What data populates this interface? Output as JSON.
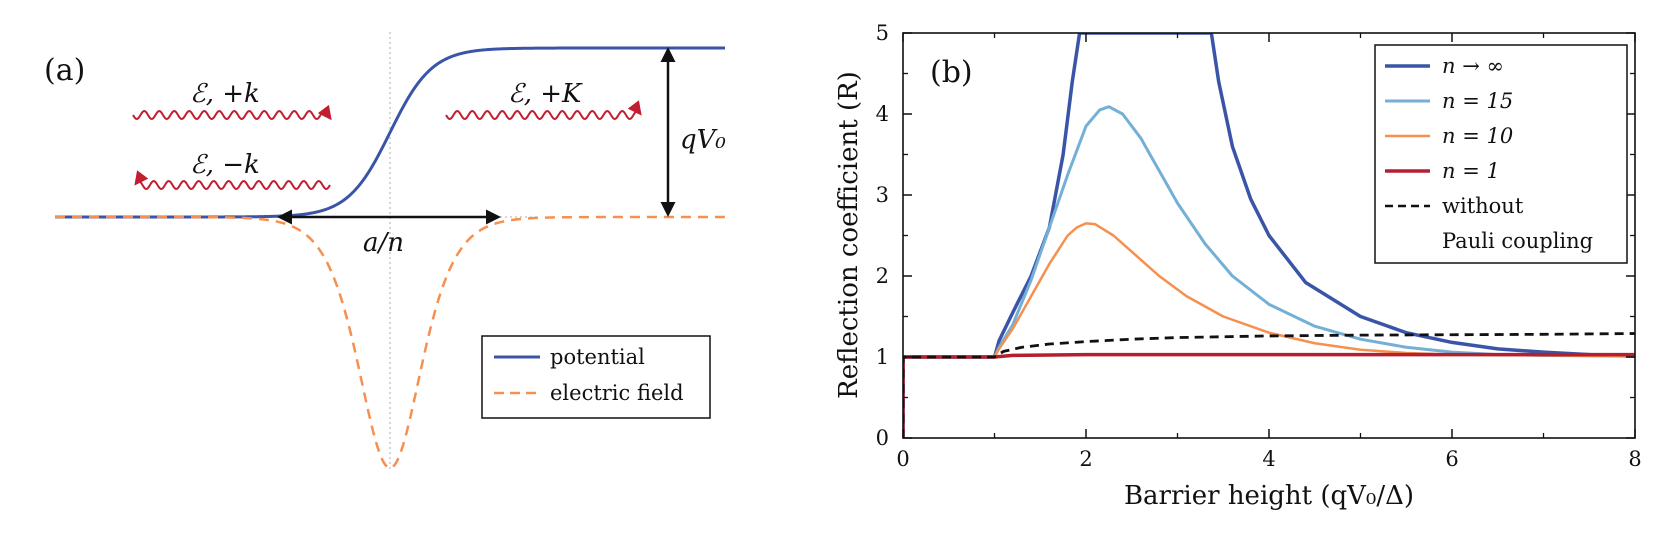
{
  "chart_data": [
    {
      "type": "line",
      "panel": "(a)",
      "x_range": [
        -1,
        1
      ],
      "y_range": [
        -1,
        1
      ],
      "series": [
        {
          "name": "potential",
          "style": "solid",
          "color": "#3a55a8",
          "description_formula": "y = 0.5 + 0.5*tanh((x - 0.02) / 0.07) in normalized units"
        },
        {
          "name": "electric field",
          "style": "dashed",
          "color": "#f5904f",
          "description_formula": "y = -sech^2((x - 0.02) / 0.07) in normalized units"
        }
      ],
      "annotations": {
        "panel_label": "(a)",
        "wave_incident": "ℰ, +k",
        "wave_reflected": "ℰ, −k",
        "wave_transmitted": "ℰ, +K",
        "width_label": "a/n",
        "height_label": "qV₀"
      },
      "legend": {
        "placement": "bottom-right",
        "entries": [
          "potential",
          "electric field"
        ]
      }
    },
    {
      "type": "line",
      "panel": "(b)",
      "title": "",
      "xlabel": "Barrier height (qV₀/Δ)",
      "ylabel": "Reflection coefficient (R)",
      "xlim": [
        0,
        8
      ],
      "ylim": [
        0,
        5
      ],
      "xticks": [
        0,
        2,
        4,
        6,
        8
      ],
      "yticks": [
        0,
        1,
        2,
        3,
        4,
        5
      ],
      "x_minor_ticks": [
        1,
        3,
        5,
        7
      ],
      "panel_label": "(b)",
      "legend": {
        "placement": "top-right"
      },
      "series": [
        {
          "name": "n → ∞",
          "color": "#3a55a8",
          "style": "solid",
          "points": [
            [
              0,
              0
            ],
            [
              0.001,
              1.0
            ],
            [
              0.5,
              1.0
            ],
            [
              1.0,
              1.0
            ],
            [
              1.05,
              1.2
            ],
            [
              1.2,
              1.55
            ],
            [
              1.4,
              2.0
            ],
            [
              1.6,
              2.6
            ],
            [
              1.75,
              3.5
            ],
            [
              1.85,
              4.4
            ],
            [
              1.93,
              5.0
            ],
            [
              3.37,
              5.0
            ],
            [
              3.45,
              4.4
            ],
            [
              3.6,
              3.6
            ],
            [
              3.8,
              2.95
            ],
            [
              4.0,
              2.5
            ],
            [
              4.4,
              1.92
            ],
            [
              5.0,
              1.5
            ],
            [
              5.5,
              1.3
            ],
            [
              6.0,
              1.18
            ],
            [
              6.5,
              1.1
            ],
            [
              7.0,
              1.06
            ],
            [
              7.5,
              1.03
            ],
            [
              8.0,
              1.01
            ]
          ]
        },
        {
          "name": "n = 15",
          "color": "#74b0d6",
          "style": "solid",
          "points": [
            [
              0,
              0
            ],
            [
              0.001,
              1.0
            ],
            [
              0.5,
              1.0
            ],
            [
              1.0,
              1.0
            ],
            [
              1.05,
              1.12
            ],
            [
              1.2,
              1.4
            ],
            [
              1.4,
              1.95
            ],
            [
              1.6,
              2.6
            ],
            [
              1.8,
              3.25
            ],
            [
              2.0,
              3.85
            ],
            [
              2.15,
              4.05
            ],
            [
              2.25,
              4.09
            ],
            [
              2.4,
              4.0
            ],
            [
              2.6,
              3.7
            ],
            [
              2.8,
              3.3
            ],
            [
              3.0,
              2.9
            ],
            [
              3.3,
              2.4
            ],
            [
              3.6,
              2.0
            ],
            [
              4.0,
              1.65
            ],
            [
              4.5,
              1.38
            ],
            [
              5.0,
              1.22
            ],
            [
              5.5,
              1.12
            ],
            [
              6.0,
              1.06
            ],
            [
              6.5,
              1.03
            ],
            [
              7.0,
              1.02
            ],
            [
              8.0,
              1.01
            ]
          ]
        },
        {
          "name": "n = 10",
          "color": "#f5904f",
          "style": "solid",
          "points": [
            [
              0,
              0
            ],
            [
              0.001,
              1.0
            ],
            [
              0.5,
              1.0
            ],
            [
              1.0,
              1.0
            ],
            [
              1.05,
              1.1
            ],
            [
              1.2,
              1.35
            ],
            [
              1.4,
              1.75
            ],
            [
              1.6,
              2.15
            ],
            [
              1.8,
              2.5
            ],
            [
              1.9,
              2.6
            ],
            [
              2.0,
              2.65
            ],
            [
              2.1,
              2.64
            ],
            [
              2.3,
              2.5
            ],
            [
              2.5,
              2.3
            ],
            [
              2.8,
              2.0
            ],
            [
              3.1,
              1.75
            ],
            [
              3.5,
              1.5
            ],
            [
              4.0,
              1.3
            ],
            [
              4.5,
              1.17
            ],
            [
              5.0,
              1.09
            ],
            [
              5.5,
              1.05
            ],
            [
              6.0,
              1.03
            ],
            [
              7.0,
              1.02
            ],
            [
              8.0,
              1.01
            ]
          ]
        },
        {
          "name": "n = 1",
          "color": "#b51f2e",
          "style": "solid",
          "points": [
            [
              0,
              0
            ],
            [
              0.001,
              1.0
            ],
            [
              1.0,
              1.0
            ],
            [
              1.2,
              1.02
            ],
            [
              2.0,
              1.03
            ],
            [
              3.0,
              1.03
            ],
            [
              4.0,
              1.03
            ],
            [
              5.0,
              1.03
            ],
            [
              6.0,
              1.03
            ],
            [
              7.0,
              1.03
            ],
            [
              8.0,
              1.03
            ]
          ]
        },
        {
          "name": "without Pauli coupling",
          "legend_lines": [
            "without",
            "Pauli coupling"
          ],
          "color": "#111111",
          "style": "dashed",
          "points": [
            [
              0,
              0
            ],
            [
              0.001,
              1.0
            ],
            [
              1.0,
              1.0
            ],
            [
              1.1,
              1.07
            ],
            [
              1.3,
              1.12
            ],
            [
              1.6,
              1.16
            ],
            [
              2.0,
              1.19
            ],
            [
              2.5,
              1.22
            ],
            [
              3.0,
              1.24
            ],
            [
              4.0,
              1.26
            ],
            [
              5.0,
              1.27
            ],
            [
              6.0,
              1.275
            ],
            [
              7.0,
              1.28
            ],
            [
              8.0,
              1.29
            ]
          ]
        }
      ]
    }
  ]
}
